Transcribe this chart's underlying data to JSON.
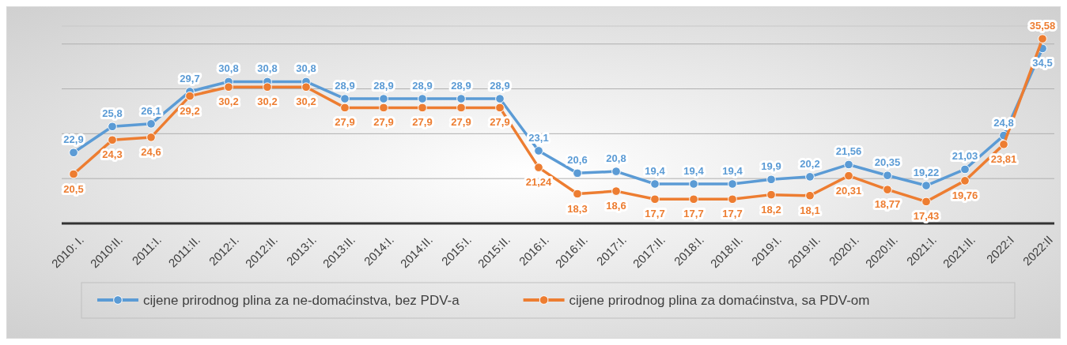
{
  "chart_data": {
    "type": "line",
    "categories": [
      "2010: I.",
      "2010:II.",
      "2011:I.",
      "2011:II.",
      "2012:I.",
      "2012:II.",
      "2013:I.",
      "2013:II.",
      "2014:I.",
      "2014:II.",
      "2015:I.",
      "2015:II.",
      "2016:I.",
      "2016:II.",
      "2017:I.",
      "2017:II.",
      "2018:I.",
      "2018:II.",
      "2019:I.",
      "2019:II.",
      "2020:I.",
      "2020:II.",
      "2021:I.",
      "2021:II.",
      "2022:I",
      "2022:II"
    ],
    "series": [
      {
        "name": "cijene prirodnog plina za ne-domaćinstva, bez PDV-a",
        "color": "#5b9bd5",
        "values": [
          22.9,
          25.8,
          26.1,
          29.7,
          30.8,
          30.8,
          30.8,
          28.9,
          28.9,
          28.9,
          28.9,
          28.9,
          23.1,
          20.6,
          20.8,
          19.4,
          19.4,
          19.4,
          19.9,
          20.2,
          21.56,
          20.35,
          19.22,
          21.03,
          24.8,
          34.5
        ],
        "value_labels": [
          "22,9",
          "25,8",
          "26,1",
          "29,7",
          "30,8",
          "30,8",
          "30,8",
          "28,9",
          "28,9",
          "28,9",
          "28,9",
          "28,9",
          "23,1",
          "20,6",
          "20,8",
          "19,4",
          "19,4",
          "19,4",
          "19,9",
          "20,2",
          "21,56",
          "20,35",
          "19,22",
          "21,03",
          "24,8",
          "34,5"
        ]
      },
      {
        "name": "cijene prirodnog plina za domaćinstva, sa PDV-om",
        "color": "#ed7d31",
        "values": [
          20.5,
          24.3,
          24.6,
          29.2,
          30.2,
          30.2,
          30.2,
          27.9,
          27.9,
          27.9,
          27.9,
          27.9,
          21.24,
          18.3,
          18.6,
          17.7,
          17.7,
          17.7,
          18.2,
          18.1,
          20.31,
          18.77,
          17.43,
          19.76,
          23.81,
          35.58
        ],
        "value_labels": [
          "20,5",
          "24,3",
          "24,6",
          "29,2",
          "30,2",
          "30,2",
          "30,2",
          "27,9",
          "27,9",
          "27,9",
          "27,9",
          "27,9",
          "21,24",
          "18,3",
          "18,6",
          "17,7",
          "17,7",
          "17,7",
          "18,2",
          "18,1",
          "20,31",
          "18,77",
          "17,43",
          "19,76",
          "23,81",
          "35,58"
        ]
      }
    ],
    "ylim": [
      15,
      37
    ],
    "yticks": [
      {
        "value": 15,
        "label": null
      },
      {
        "value": 20,
        "label": null
      },
      {
        "value": 25,
        "label": null
      },
      {
        "value": 30,
        "label": null
      },
      {
        "value": 35,
        "label": null
      }
    ],
    "grid": "y",
    "tick_labels": "x",
    "legend": "bottom",
    "marker": "circle",
    "line_style": "solid"
  }
}
